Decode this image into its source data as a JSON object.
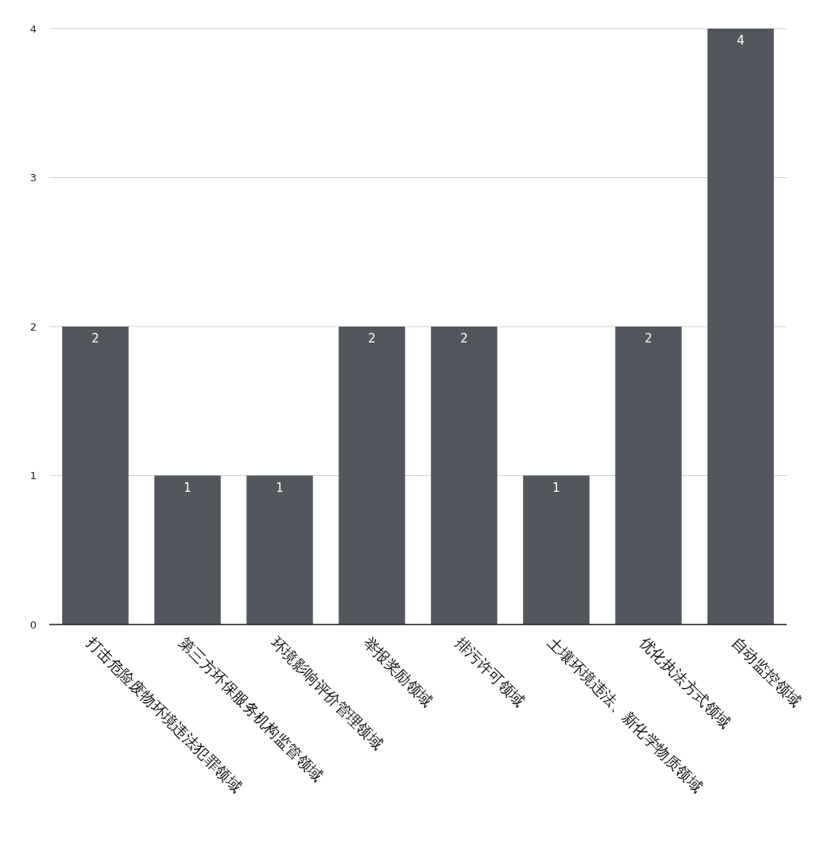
{
  "chart_data": {
    "type": "bar",
    "categories": [
      "打击危险废物环境违法犯罪领域",
      "第三方环保服务机构监管领域",
      "环境影响评价管理领域",
      "举报奖励领域",
      "排污许可领域",
      "土壤环境违法、新化学物质领域",
      "优化执法方式领域",
      "自动监控领域"
    ],
    "values": [
      2,
      1,
      1,
      2,
      2,
      1,
      2,
      4
    ],
    "color": "#52575e",
    "ylim": [
      0,
      4
    ],
    "yticks": [
      0,
      1,
      2,
      3,
      4
    ],
    "grid": "y",
    "data_labels": true
  }
}
